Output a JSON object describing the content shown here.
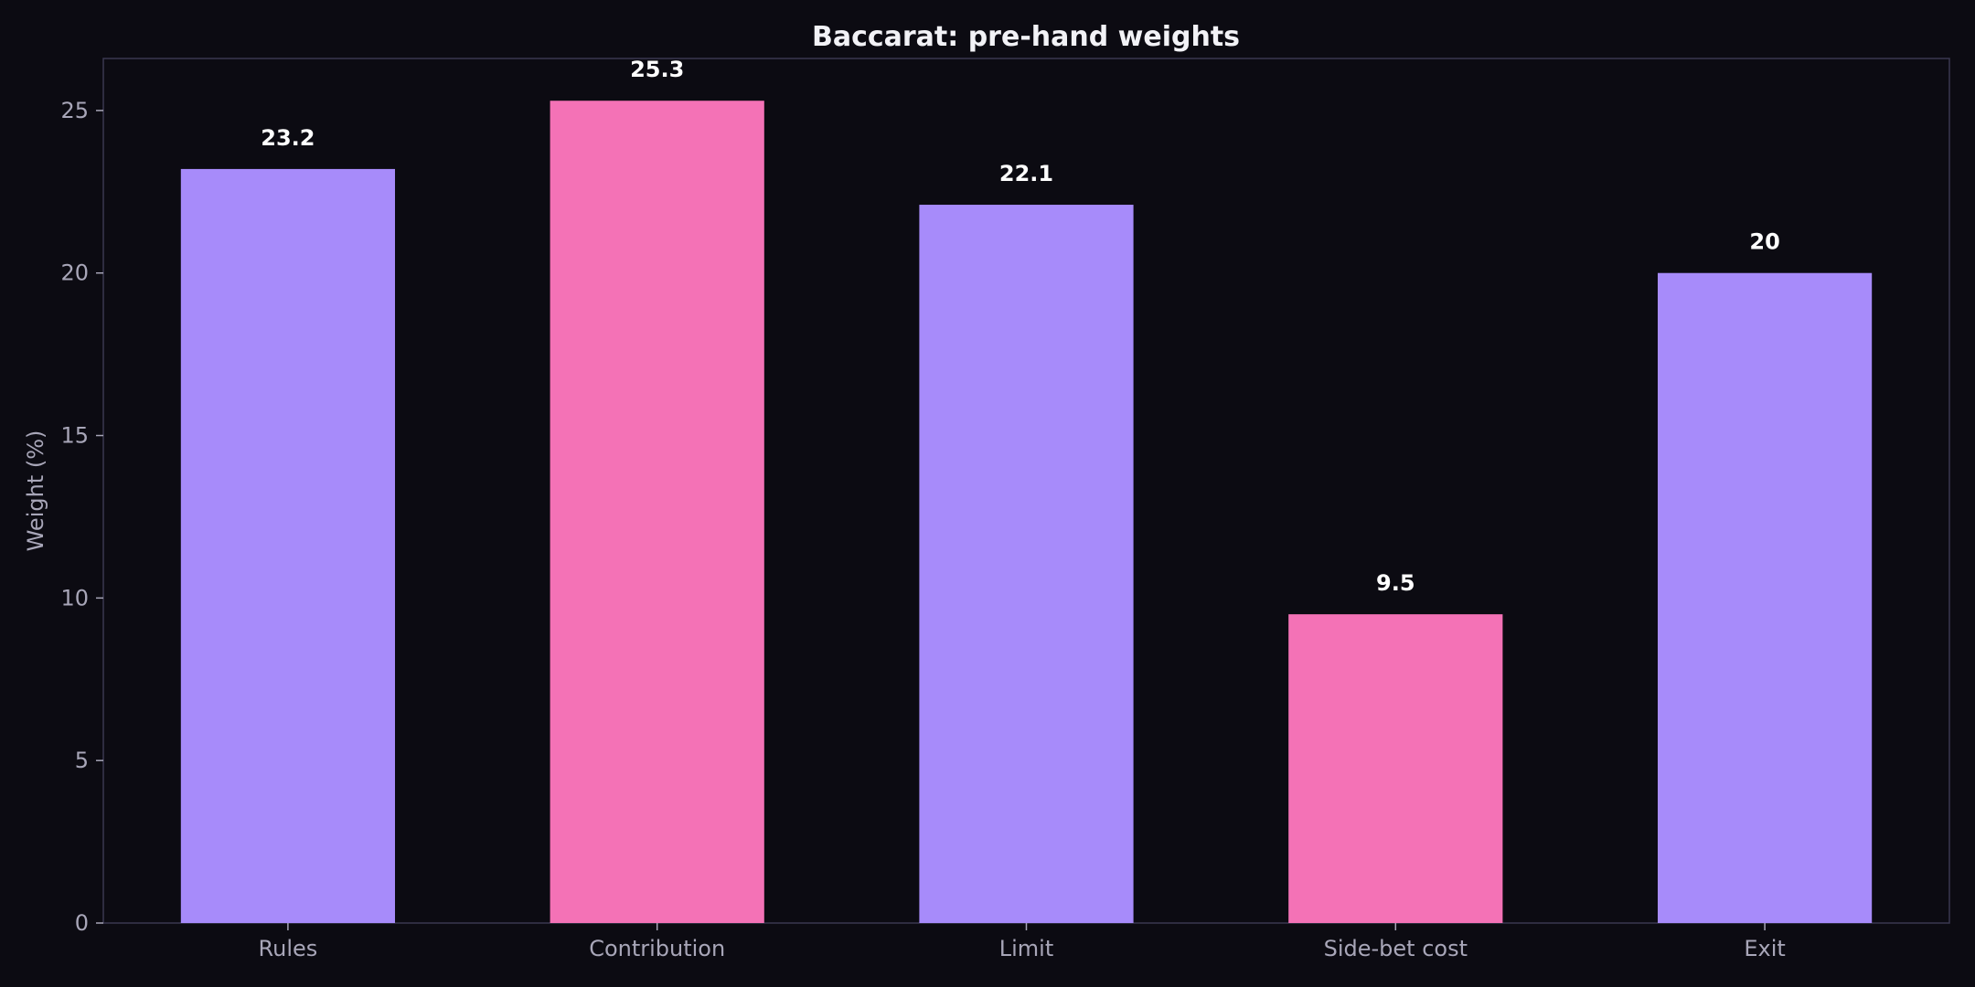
{
  "chart_data": {
    "type": "bar",
    "title": "Baccarat: pre-hand weights",
    "xlabel": "",
    "ylabel": "Weight (%)",
    "categories": [
      "Rules",
      "Contribution",
      "Limit",
      "Side-bet cost",
      "Exit"
    ],
    "values": [
      23.2,
      25.3,
      22.1,
      9.5,
      20
    ],
    "value_labels": [
      "23.2",
      "25.3",
      "22.1",
      "9.5",
      "20"
    ],
    "bar_colors": [
      "#a78bfa",
      "#f472b6",
      "#a78bfa",
      "#f472b6",
      "#a78bfa"
    ],
    "ylim": [
      0,
      26.6
    ],
    "yticks": [
      0,
      5,
      10,
      15,
      20,
      25
    ],
    "grid": false,
    "legend": "none"
  },
  "colors": {
    "background": "#0c0b12",
    "axes_frame": "#3a3850",
    "text": "#a8a6b8",
    "title": "#f2f2f6"
  }
}
